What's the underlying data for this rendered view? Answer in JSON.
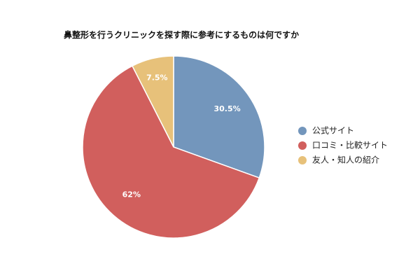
{
  "chart_data": {
    "type": "pie",
    "title": "鼻整形を行うクリニックを探す際に参考にするものは何ですか",
    "categories": [
      "公式サイト",
      "口コミ・比較サイト",
      "友人・知人の紹介"
    ],
    "values": [
      30.5,
      62,
      7.5
    ],
    "labels": [
      "30.5%",
      "62%",
      "7.5%"
    ],
    "colors": [
      "#7396bc",
      "#d15f5d",
      "#e7c17a"
    ],
    "start_angle_deg": 0,
    "direction": "clockwise",
    "legend_position": "right"
  }
}
